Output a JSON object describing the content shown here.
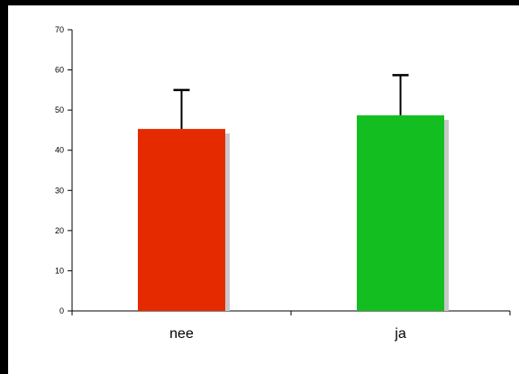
{
  "chart_data": {
    "type": "bar",
    "categories": [
      "nee",
      "ja"
    ],
    "values": [
      45.3,
      48.7
    ],
    "error_upper": [
      55.0,
      58.7
    ],
    "bar_colors": [
      "#e62a00",
      "#13bf20"
    ],
    "shadow_color": "#c8c8c8",
    "title": "",
    "xlabel": "",
    "ylabel": "",
    "ylim": [
      0,
      70
    ],
    "yticks": [
      "0",
      "10",
      "20",
      "30",
      "40",
      "50",
      "60",
      "70"
    ],
    "grid": false,
    "legend": false
  }
}
